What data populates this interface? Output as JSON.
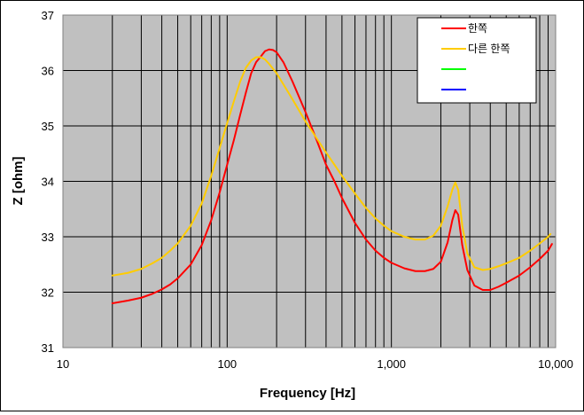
{
  "chart_data": {
    "type": "line",
    "title": "",
    "xlabel": "Frequency [Hz]",
    "ylabel": "Z [ohm]",
    "xscale": "log",
    "xlim": [
      10,
      10000
    ],
    "ylim": [
      31,
      37
    ],
    "x_ticks": [
      {
        "value": 10,
        "label": "10"
      },
      {
        "value": 100,
        "label": "100"
      },
      {
        "value": 1000,
        "label": "1,000"
      },
      {
        "value": 10000,
        "label": "10,000"
      }
    ],
    "y_ticks": [
      {
        "value": 31,
        "label": "31"
      },
      {
        "value": 32,
        "label": "32"
      },
      {
        "value": 33,
        "label": "33"
      },
      {
        "value": 34,
        "label": "34"
      },
      {
        "value": 35,
        "label": "35"
      },
      {
        "value": 36,
        "label": "36"
      },
      {
        "value": 37,
        "label": "37"
      }
    ],
    "grid": true,
    "plot_background": "#c0c0c0",
    "legend_position": "top-right",
    "series": [
      {
        "name": "한쪽",
        "color": "#ff0000",
        "points": [
          [
            20,
            31.8
          ],
          [
            25,
            31.85
          ],
          [
            30,
            31.9
          ],
          [
            35,
            31.97
          ],
          [
            40,
            32.05
          ],
          [
            45,
            32.14
          ],
          [
            50,
            32.25
          ],
          [
            60,
            32.5
          ],
          [
            70,
            32.85
          ],
          [
            80,
            33.3
          ],
          [
            90,
            33.8
          ],
          [
            100,
            34.3
          ],
          [
            110,
            34.75
          ],
          [
            120,
            35.2
          ],
          [
            130,
            35.6
          ],
          [
            140,
            35.95
          ],
          [
            150,
            36.15
          ],
          [
            160,
            36.25
          ],
          [
            170,
            36.35
          ],
          [
            180,
            36.38
          ],
          [
            190,
            36.37
          ],
          [
            200,
            36.33
          ],
          [
            220,
            36.15
          ],
          [
            250,
            35.8
          ],
          [
            300,
            35.25
          ],
          [
            350,
            34.75
          ],
          [
            400,
            34.3
          ],
          [
            450,
            34.0
          ],
          [
            500,
            33.7
          ],
          [
            600,
            33.25
          ],
          [
            700,
            32.95
          ],
          [
            800,
            32.75
          ],
          [
            900,
            32.62
          ],
          [
            1000,
            32.53
          ],
          [
            1200,
            32.43
          ],
          [
            1400,
            32.38
          ],
          [
            1600,
            32.38
          ],
          [
            1800,
            32.42
          ],
          [
            2000,
            32.55
          ],
          [
            2200,
            32.9
          ],
          [
            2350,
            33.3
          ],
          [
            2450,
            33.48
          ],
          [
            2550,
            33.4
          ],
          [
            2700,
            32.85
          ],
          [
            2900,
            32.4
          ],
          [
            3200,
            32.12
          ],
          [
            3600,
            32.04
          ],
          [
            4000,
            32.04
          ],
          [
            4500,
            32.1
          ],
          [
            5000,
            32.17
          ],
          [
            6000,
            32.3
          ],
          [
            7000,
            32.45
          ],
          [
            8000,
            32.6
          ],
          [
            9000,
            32.75
          ],
          [
            9500,
            32.87
          ]
        ]
      },
      {
        "name": "다른 한쪽",
        "color": "#ffcc00",
        "points": [
          [
            20,
            32.3
          ],
          [
            25,
            32.35
          ],
          [
            30,
            32.42
          ],
          [
            35,
            32.52
          ],
          [
            40,
            32.62
          ],
          [
            45,
            32.75
          ],
          [
            50,
            32.88
          ],
          [
            60,
            33.2
          ],
          [
            70,
            33.6
          ],
          [
            80,
            34.1
          ],
          [
            90,
            34.6
          ],
          [
            100,
            35.05
          ],
          [
            110,
            35.45
          ],
          [
            120,
            35.8
          ],
          [
            130,
            36.05
          ],
          [
            140,
            36.18
          ],
          [
            150,
            36.24
          ],
          [
            160,
            36.24
          ],
          [
            170,
            36.2
          ],
          [
            180,
            36.12
          ],
          [
            200,
            35.95
          ],
          [
            220,
            35.75
          ],
          [
            250,
            35.48
          ],
          [
            300,
            35.08
          ],
          [
            350,
            34.78
          ],
          [
            400,
            34.52
          ],
          [
            450,
            34.3
          ],
          [
            500,
            34.1
          ],
          [
            600,
            33.78
          ],
          [
            700,
            33.52
          ],
          [
            800,
            33.33
          ],
          [
            900,
            33.2
          ],
          [
            1000,
            33.1
          ],
          [
            1200,
            33.0
          ],
          [
            1400,
            32.95
          ],
          [
            1600,
            32.95
          ],
          [
            1800,
            33.02
          ],
          [
            2000,
            33.2
          ],
          [
            2200,
            33.55
          ],
          [
            2350,
            33.85
          ],
          [
            2450,
            33.98
          ],
          [
            2550,
            33.85
          ],
          [
            2700,
            33.2
          ],
          [
            2900,
            32.7
          ],
          [
            3200,
            32.45
          ],
          [
            3600,
            32.4
          ],
          [
            4000,
            32.42
          ],
          [
            4500,
            32.47
          ],
          [
            5000,
            32.52
          ],
          [
            6000,
            32.62
          ],
          [
            7000,
            32.75
          ],
          [
            8000,
            32.88
          ],
          [
            9000,
            33.0
          ],
          [
            9300,
            33.05
          ]
        ]
      },
      {
        "name": "",
        "color": "#00ff00",
        "points": []
      },
      {
        "name": "",
        "color": "#0000ff",
        "points": []
      }
    ]
  }
}
